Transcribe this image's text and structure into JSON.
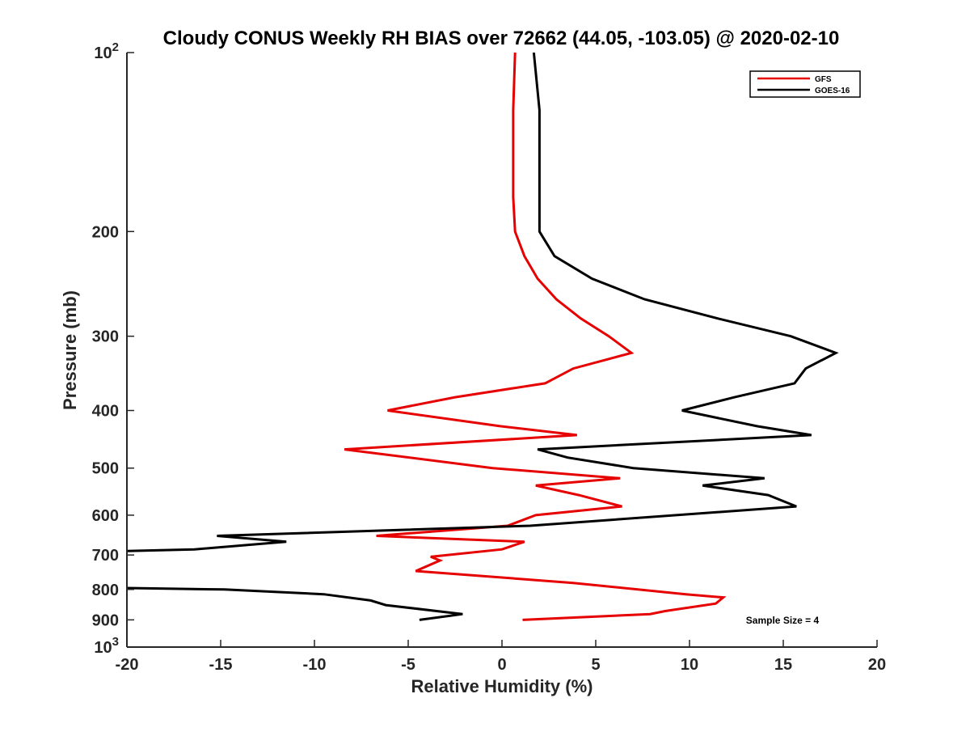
{
  "chart_data": {
    "type": "line",
    "title": "Cloudy CONUS Weekly RH BIAS over 72662 (44.05, -103.05) @ 2020-02-10",
    "xlabel": "Relative Humidity (%)",
    "ylabel": "Pressure (mb)",
    "xlim": [
      -20,
      20
    ],
    "ylim": [
      100,
      1000
    ],
    "y_scale": "log",
    "y_reversed": true,
    "grid": false,
    "legend_position": "top-right",
    "xticks": [
      "-20",
      "-15",
      "-10",
      "-5",
      "0",
      "5",
      "10",
      "15",
      "20"
    ],
    "yticks": [
      {
        "value": 100,
        "label": "10",
        "sup": "2"
      },
      {
        "value": 200,
        "label": "200",
        "sup": ""
      },
      {
        "value": 300,
        "label": "300",
        "sup": ""
      },
      {
        "value": 400,
        "label": "400",
        "sup": ""
      },
      {
        "value": 500,
        "label": "500",
        "sup": ""
      },
      {
        "value": 600,
        "label": "600",
        "sup": ""
      },
      {
        "value": 700,
        "label": "700",
        "sup": ""
      },
      {
        "value": 800,
        "label": "800",
        "sup": ""
      },
      {
        "value": 900,
        "label": "900",
        "sup": ""
      },
      {
        "value": 1000,
        "label": "10",
        "sup": "3"
      }
    ],
    "annotation": "Sample Size = 4",
    "series": [
      {
        "name": "GFS",
        "color": "#e60000",
        "points": [
          [
            0.7,
            100
          ],
          [
            0.6,
            125
          ],
          [
            0.6,
            150
          ],
          [
            0.6,
            175
          ],
          [
            0.7,
            200
          ],
          [
            1.2,
            220
          ],
          [
            1.9,
            240
          ],
          [
            2.9,
            260
          ],
          [
            4.2,
            280
          ],
          [
            5.7,
            300
          ],
          [
            6.9,
            320
          ],
          [
            3.8,
            340
          ],
          [
            2.3,
            360
          ],
          [
            -2.5,
            380
          ],
          [
            -6.1,
            400
          ],
          [
            -0.1,
            425
          ],
          [
            4.0,
            440
          ],
          [
            -8.4,
            465
          ],
          [
            -0.5,
            500
          ],
          [
            6.3,
            520
          ],
          [
            1.8,
            535
          ],
          [
            4.1,
            555
          ],
          [
            6.4,
            580
          ],
          [
            1.8,
            600
          ],
          [
            0.3,
            625
          ],
          [
            -6.7,
            650
          ],
          [
            1.2,
            665
          ],
          [
            0.0,
            685
          ],
          [
            -3.8,
            705
          ],
          [
            -3.3,
            715
          ],
          [
            -4.6,
            745
          ],
          [
            3.8,
            780
          ],
          [
            9.8,
            815
          ],
          [
            11.8,
            825
          ],
          [
            11.4,
            845
          ],
          [
            8.7,
            870
          ],
          [
            7.9,
            880
          ],
          [
            1.1,
            900
          ]
        ]
      },
      {
        "name": "GOES-16",
        "color": "#000000",
        "points": [
          [
            1.7,
            100
          ],
          [
            2.0,
            125
          ],
          [
            2.0,
            150
          ],
          [
            2.0,
            175
          ],
          [
            2.0,
            200
          ],
          [
            2.8,
            220
          ],
          [
            4.8,
            240
          ],
          [
            7.6,
            260
          ],
          [
            11.5,
            280
          ],
          [
            15.4,
            300
          ],
          [
            17.8,
            320
          ],
          [
            16.2,
            340
          ],
          [
            15.6,
            360
          ],
          [
            12.4,
            380
          ],
          [
            9.6,
            400
          ],
          [
            13.6,
            425
          ],
          [
            16.5,
            440
          ],
          [
            1.9,
            465
          ],
          [
            3.5,
            480
          ],
          [
            7.0,
            500
          ],
          [
            14.0,
            520
          ],
          [
            10.7,
            535
          ],
          [
            14.2,
            555
          ],
          [
            15.7,
            580
          ],
          [
            1.5,
            625
          ],
          [
            -15.2,
            650
          ],
          [
            -11.5,
            665
          ],
          [
            -16.4,
            685
          ],
          [
            -20.5,
            690
          ],
          [
            -20.5,
            795
          ],
          [
            -14.8,
            800
          ],
          [
            -9.5,
            815
          ],
          [
            -7.0,
            835
          ],
          [
            -6.2,
            850
          ],
          [
            -2.1,
            880
          ],
          [
            -4.4,
            900
          ]
        ]
      }
    ]
  }
}
